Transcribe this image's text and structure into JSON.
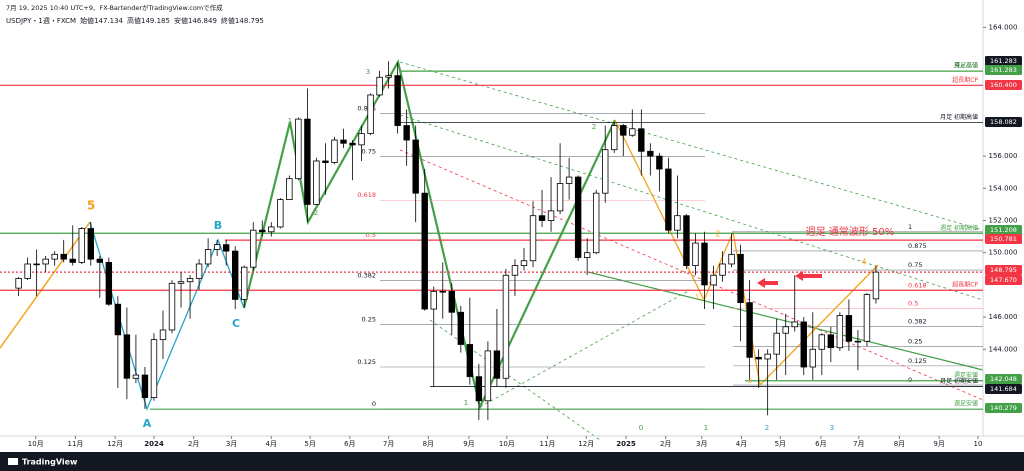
{
  "header": {
    "line1": "7月 19, 2025 10:40 UTC+9、FX-BartenderがTradingView.comで作成",
    "symbol": "USDJPY・1週・FXCM",
    "ohlc_labels": [
      "始値",
      "高値",
      "安値",
      "終値"
    ]
  },
  "footer": {
    "logo": "TradingView"
  },
  "chart_data": {
    "type": "candlestick",
    "xlim": [
      -2.06,
      106.86
    ],
    "ylim": [
      138.8,
      165.7
    ],
    "xticks": [
      {
        "value": 1.9,
        "label": "10月"
      },
      {
        "value": 6.3,
        "label": "11月"
      },
      {
        "value": 10.7,
        "label": "12月"
      },
      {
        "value": 15,
        "label": "2024"
      },
      {
        "value": 19.4,
        "label": "2月"
      },
      {
        "value": 23.6,
        "label": "3月"
      },
      {
        "value": 28,
        "label": "4月"
      },
      {
        "value": 32.3,
        "label": "5月"
      },
      {
        "value": 36.7,
        "label": "6月"
      },
      {
        "value": 41,
        "label": "7月"
      },
      {
        "value": 45.4,
        "label": "8月"
      },
      {
        "value": 49.9,
        "label": "9月"
      },
      {
        "value": 54.1,
        "label": "10月"
      },
      {
        "value": 58.6,
        "label": "11月"
      },
      {
        "value": 62.9,
        "label": "12月"
      },
      {
        "value": 67.3,
        "label": "2025"
      },
      {
        "value": 71.7,
        "label": "2月"
      },
      {
        "value": 75.7,
        "label": "3月"
      },
      {
        "value": 80.1,
        "label": "4月"
      },
      {
        "value": 84.4,
        "label": "5月"
      },
      {
        "value": 88.9,
        "label": "6月"
      },
      {
        "value": 93.1,
        "label": "7月"
      },
      {
        "value": 97.6,
        "label": "8月"
      },
      {
        "value": 102,
        "label": "9月"
      },
      {
        "value": 106.3,
        "label": "10"
      }
    ],
    "yticks": [
      {
        "value": 164,
        "label": "164.000"
      },
      {
        "value": 156,
        "label": "156.000"
      },
      {
        "value": 154,
        "label": "154.000"
      },
      {
        "value": 152,
        "label": "152.000"
      },
      {
        "value": 150,
        "label": "150.000"
      },
      {
        "value": 146,
        "label": "146.000"
      },
      {
        "value": 144,
        "label": "144.000"
      }
    ],
    "up_color": "#ffffff",
    "down_color": "#000000",
    "candles": [
      [
        147.8,
        148.5,
        147.3,
        148.4
      ],
      [
        148.4,
        149.7,
        148.3,
        149.3
      ],
      [
        149.3,
        150.2,
        147.3,
        149.3
      ],
      [
        149.3,
        149.8,
        148.8,
        149.6
      ],
      [
        149.6,
        150.1,
        149.2,
        149.9
      ],
      [
        149.9,
        150.8,
        149.4,
        149.6
      ],
      [
        149.6,
        151.7,
        149.2,
        149.4
      ],
      [
        149.4,
        151.6,
        149.3,
        151.5
      ],
      [
        151.5,
        151.9,
        149.2,
        149.6
      ],
      [
        149.6,
        149.8,
        147.2,
        149.4
      ],
      [
        149.4,
        149.7,
        146.7,
        146.8
      ],
      [
        146.8,
        147.3,
        141.6,
        144.9
      ],
      [
        144.9,
        146.6,
        140.9,
        142.2
      ],
      [
        142.2,
        144.9,
        141.9,
        142.4
      ],
      [
        142.4,
        142.9,
        140.3,
        141.0
      ],
      [
        141.0,
        145.0,
        140.8,
        144.6
      ],
      [
        144.6,
        146.4,
        143.4,
        145.2
      ],
      [
        145.2,
        148.3,
        145.0,
        148.1
      ],
      [
        148.1,
        148.8,
        146.6,
        148.2
      ],
      [
        148.2,
        148.6,
        145.9,
        148.4
      ],
      [
        148.4,
        149.6,
        147.7,
        149.3
      ],
      [
        149.3,
        150.9,
        149.1,
        150.2
      ],
      [
        150.2,
        150.8,
        149.8,
        150.5
      ],
      [
        150.5,
        150.8,
        149.2,
        150.1
      ],
      [
        150.1,
        150.4,
        146.5,
        147.1
      ],
      [
        147.1,
        149.2,
        146.6,
        149.1
      ],
      [
        149.1,
        151.9,
        148.9,
        151.4
      ],
      [
        151.4,
        152.0,
        151.0,
        151.3
      ],
      [
        151.3,
        151.9,
        151.0,
        151.6
      ],
      [
        151.6,
        153.4,
        151.5,
        153.3
      ],
      [
        153.3,
        154.8,
        153.3,
        154.6
      ],
      [
        154.6,
        158.4,
        154.5,
        158.3
      ],
      [
        158.3,
        160.2,
        151.9,
        153.0
      ],
      [
        153.0,
        155.9,
        153.0,
        155.7
      ],
      [
        155.7,
        156.8,
        153.6,
        155.6
      ],
      [
        155.6,
        157.2,
        155.5,
        157.0
      ],
      [
        157.0,
        157.7,
        156.5,
        156.8
      ],
      [
        156.8,
        157.0,
        154.5,
        156.7
      ],
      [
        156.7,
        157.9,
        155.7,
        157.4
      ],
      [
        157.4,
        159.9,
        157.3,
        159.8
      ],
      [
        159.8,
        161.3,
        159.7,
        160.9
      ],
      [
        160.9,
        161.9,
        160.2,
        161.0
      ],
      [
        161.0,
        161.8,
        157.4,
        157.9
      ],
      [
        157.9,
        158.9,
        155.4,
        157.0
      ],
      [
        157.0,
        157.9,
        151.9,
        153.7
      ],
      [
        153.7,
        155.2,
        146.4,
        146.5
      ],
      [
        146.5,
        147.9,
        141.7,
        147.6
      ],
      [
        147.6,
        149.4,
        145.9,
        147.6
      ],
      [
        147.6,
        148.1,
        144.9,
        146.3
      ],
      [
        146.3,
        146.7,
        143.8,
        144.3
      ],
      [
        144.3,
        147.2,
        141.8,
        142.3
      ],
      [
        142.3,
        143.1,
        139.6,
        140.8
      ],
      [
        140.8,
        144.5,
        139.6,
        143.9
      ],
      [
        143.9,
        146.5,
        141.7,
        142.2
      ],
      [
        142.2,
        149.0,
        141.6,
        148.6
      ],
      [
        148.6,
        149.6,
        147.3,
        149.2
      ],
      [
        149.2,
        150.3,
        148.9,
        149.5
      ],
      [
        149.5,
        153.2,
        149.1,
        152.3
      ],
      [
        152.3,
        153.9,
        151.6,
        152.0
      ],
      [
        152.0,
        154.7,
        151.3,
        152.6
      ],
      [
        152.6,
        156.8,
        152.4,
        154.3
      ],
      [
        154.3,
        155.9,
        153.3,
        154.7
      ],
      [
        154.7,
        154.8,
        149.5,
        149.7
      ],
      [
        149.7,
        150.9,
        148.6,
        150.0
      ],
      [
        150.0,
        153.9,
        149.9,
        153.7
      ],
      [
        153.7,
        157.9,
        153.1,
        156.4
      ],
      [
        156.4,
        158.1,
        156.2,
        157.9
      ],
      [
        157.9,
        158.0,
        156.0,
        157.3
      ],
      [
        157.3,
        158.9,
        157.2,
        157.7
      ],
      [
        157.7,
        158.9,
        154.8,
        156.3
      ],
      [
        156.3,
        156.8,
        154.8,
        156.0
      ],
      [
        156.0,
        156.2,
        153.8,
        155.2
      ],
      [
        155.2,
        155.9,
        151.2,
        151.4
      ],
      [
        151.4,
        154.8,
        150.9,
        152.3
      ],
      [
        152.3,
        152.4,
        149.0,
        149.2
      ],
      [
        149.2,
        151.2,
        148.6,
        150.6
      ],
      [
        150.6,
        151.3,
        146.5,
        148.0
      ],
      [
        148.0,
        149.2,
        146.5,
        148.6
      ],
      [
        148.6,
        150.1,
        148.2,
        149.3
      ],
      [
        149.3,
        151.2,
        149.1,
        149.9
      ],
      [
        149.9,
        150.5,
        144.5,
        146.9
      ],
      [
        146.9,
        148.3,
        142.1,
        143.5
      ],
      [
        143.5,
        144.0,
        141.6,
        143.4
      ],
      [
        143.4,
        144.0,
        139.9,
        143.7
      ],
      [
        143.7,
        145.9,
        142.1,
        145.0
      ],
      [
        145.0,
        146.2,
        142.4,
        145.4
      ],
      [
        145.4,
        148.6,
        145.1,
        145.7
      ],
      [
        145.7,
        146.0,
        142.4,
        142.9
      ],
      [
        142.9,
        146.3,
        142.1,
        144.0
      ],
      [
        144.0,
        145.0,
        142.4,
        144.9
      ],
      [
        144.9,
        145.4,
        143.2,
        144.1
      ],
      [
        144.1,
        146.3,
        143.9,
        146.1
      ],
      [
        146.1,
        147.1,
        143.9,
        144.5
      ],
      [
        144.5,
        145.2,
        142.7,
        144.5
      ],
      [
        144.5,
        147.5,
        144.2,
        147.4
      ],
      [
        147.134,
        149.185,
        146.849,
        148.795
      ]
    ],
    "levels": [
      {
        "value": 161.283,
        "label": "161.283",
        "color": "#131722",
        "note": "月足高値"
      },
      {
        "value": 161.283,
        "label": "161.283",
        "color": "#43a047",
        "note": "週足高値"
      },
      {
        "value": 160.4,
        "label": "160.400",
        "color": "#f23645",
        "note": "超長期CP"
      },
      {
        "value": 158.082,
        "label": "158.082",
        "color": "#131722",
        "note": "月足 初期高値"
      },
      {
        "value": 151.208,
        "label": "151.208",
        "color": "#43a047",
        "note": "週足 初期高値"
      },
      {
        "value": 150.781,
        "label": "150.781",
        "color": "#f23645"
      },
      {
        "value": 148.795,
        "label": "148.795",
        "color": "#f23645"
      },
      {
        "value": 147.67,
        "label": "147.670",
        "color": "#f23645",
        "note": "超長期CP"
      },
      {
        "value": 142.048,
        "label": "142.048",
        "color": "#43a047",
        "note": "週足安値"
      },
      {
        "value": 141.684,
        "label": "141.684",
        "color": "#131722",
        "note": "月足 初期安値"
      },
      {
        "value": 140.279,
        "label": "140.279",
        "color": "#43a047",
        "note": "週足安値"
      }
    ],
    "fib_left": [
      {
        "value": 140.279,
        "label": "0"
      },
      {
        "value": 142.9,
        "label": "0.125"
      },
      {
        "value": 145.53,
        "label": "0.25"
      },
      {
        "value": 148.26,
        "label": "0.382"
      },
      {
        "value": 150.78,
        "label": "0.5"
      },
      {
        "value": 153.26,
        "label": "0.618"
      },
      {
        "value": 155.99,
        "label": "0.75"
      },
      {
        "value": 158.66,
        "label": "0.875"
      }
    ],
    "fib_right": [
      {
        "value": 141.78,
        "label": "0"
      },
      {
        "value": 142.97,
        "label": "0.125"
      },
      {
        "value": 144.16,
        "label": "0.25"
      },
      {
        "value": 145.42,
        "label": "0.382"
      },
      {
        "value": 146.54,
        "label": "0.5"
      },
      {
        "value": 147.66,
        "label": "0.618"
      },
      {
        "value": 148.92,
        "label": "0.75"
      },
      {
        "value": 150.11,
        "label": "0.875"
      },
      {
        "value": 151.3,
        "label": "1"
      }
    ],
    "annotations": [
      {
        "text": "5",
        "color": "#f7a21b"
      },
      {
        "text": "A",
        "color": "#26a5c9"
      },
      {
        "text": "B",
        "color": "#26a5c9"
      },
      {
        "text": "C",
        "color": "#26a5c9"
      },
      {
        "text": "1",
        "color": "#43a047"
      },
      {
        "text": "2",
        "color": "#43a047"
      },
      {
        "text": "3",
        "color": "#43a047"
      },
      {
        "text": "1",
        "color": "#43a047"
      },
      {
        "text": "2",
        "color": "#43a047"
      },
      {
        "text": "1",
        "color": "#f7a21b"
      },
      {
        "text": "2",
        "color": "#f7a21b"
      },
      {
        "text": "3",
        "color": "#f7a21b"
      },
      {
        "text": "4",
        "color": "#f7a21b"
      },
      {
        "text": "0",
        "color": "#43a047"
      },
      {
        "text": "1",
        "color": "#43a047"
      },
      {
        "text": "2",
        "color": "#26a5c9"
      },
      {
        "text": "3",
        "color": "#26a5c9"
      },
      {
        "text": "週足 通常波形 50%",
        "color": "#f23645"
      }
    ]
  }
}
